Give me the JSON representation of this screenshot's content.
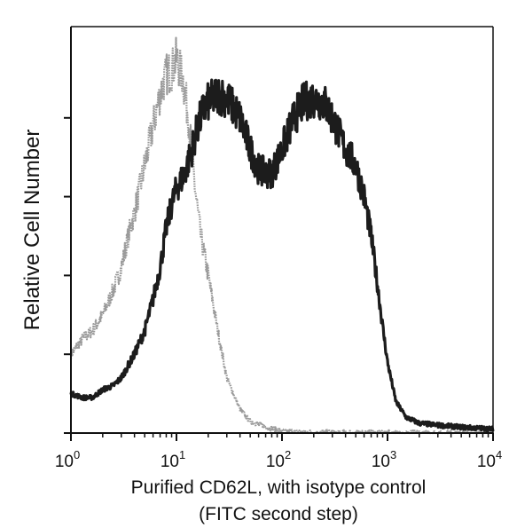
{
  "chart_data": {
    "type": "line",
    "title": "",
    "xlabel_lines": [
      "Purified CD62L, with isotype control",
      "(FITC second step)"
    ],
    "ylabel": "Relative Cell Number",
    "x_scale": "log",
    "xlim": [
      1,
      10000
    ],
    "ylim": [
      0,
      100
    ],
    "x_ticks": [
      {
        "value": 1,
        "base": "10",
        "exp": "0"
      },
      {
        "value": 10,
        "base": "10",
        "exp": "1"
      },
      {
        "value": 100,
        "base": "10",
        "exp": "2"
      },
      {
        "value": 1000,
        "base": "10",
        "exp": "3"
      },
      {
        "value": 10000,
        "base": "10",
        "exp": "4"
      }
    ],
    "y_ticks": [
      0,
      20,
      40,
      60,
      80
    ],
    "grid": false,
    "legend": "none",
    "series": [
      {
        "color": "#9a9a9a",
        "points": [
          [
            1.0,
            20
          ],
          [
            1.3,
            24
          ],
          [
            1.6,
            26
          ],
          [
            2.0,
            30
          ],
          [
            2.5,
            36
          ],
          [
            3.0,
            42
          ],
          [
            3.5,
            50
          ],
          [
            4.0,
            56
          ],
          [
            5.0,
            68
          ],
          [
            6.0,
            78
          ],
          [
            7.0,
            86
          ],
          [
            8.0,
            91
          ],
          [
            9.0,
            92
          ],
          [
            10.0,
            95
          ],
          [
            11.5,
            90
          ],
          [
            13.0,
            80
          ],
          [
            15.0,
            62
          ],
          [
            17.0,
            50
          ],
          [
            20.0,
            40
          ],
          [
            25.0,
            25
          ],
          [
            30.0,
            14
          ],
          [
            40.0,
            6
          ],
          [
            50.0,
            3
          ],
          [
            70.0,
            1.5
          ],
          [
            100.0,
            0.5
          ],
          [
            200.0,
            0.2
          ],
          [
            10000.0,
            0
          ]
        ]
      },
      {
        "color": "#1c1c1c",
        "points": [
          [
            1.0,
            10
          ],
          [
            1.3,
            9
          ],
          [
            1.6,
            9
          ],
          [
            2.0,
            11
          ],
          [
            2.5,
            12
          ],
          [
            3.0,
            14
          ],
          [
            4.0,
            20
          ],
          [
            5.0,
            26
          ],
          [
            6.0,
            34
          ],
          [
            7.0,
            42
          ],
          [
            8.0,
            52
          ],
          [
            9.0,
            58
          ],
          [
            10.0,
            62
          ],
          [
            12.0,
            66
          ],
          [
            14.0,
            72
          ],
          [
            16.0,
            78
          ],
          [
            18.0,
            82
          ],
          [
            20.0,
            84
          ],
          [
            25.0,
            86
          ],
          [
            30.0,
            85
          ],
          [
            40.0,
            80
          ],
          [
            50.0,
            72
          ],
          [
            60.0,
            67
          ],
          [
            70.0,
            66
          ],
          [
            80.0,
            66
          ],
          [
            100.0,
            72
          ],
          [
            130.0,
            80
          ],
          [
            160.0,
            84
          ],
          [
            200.0,
            85
          ],
          [
            250.0,
            84
          ],
          [
            300.0,
            80
          ],
          [
            400.0,
            72
          ],
          [
            500.0,
            68
          ],
          [
            600.0,
            60
          ],
          [
            700.0,
            50
          ],
          [
            800.0,
            38
          ],
          [
            900.0,
            27
          ],
          [
            1000.0,
            18
          ],
          [
            1200.0,
            8
          ],
          [
            1500.0,
            4
          ],
          [
            2000.0,
            2.5
          ],
          [
            3000.0,
            2
          ],
          [
            5000.0,
            1.5
          ],
          [
            10000.0,
            1
          ]
        ]
      }
    ]
  }
}
